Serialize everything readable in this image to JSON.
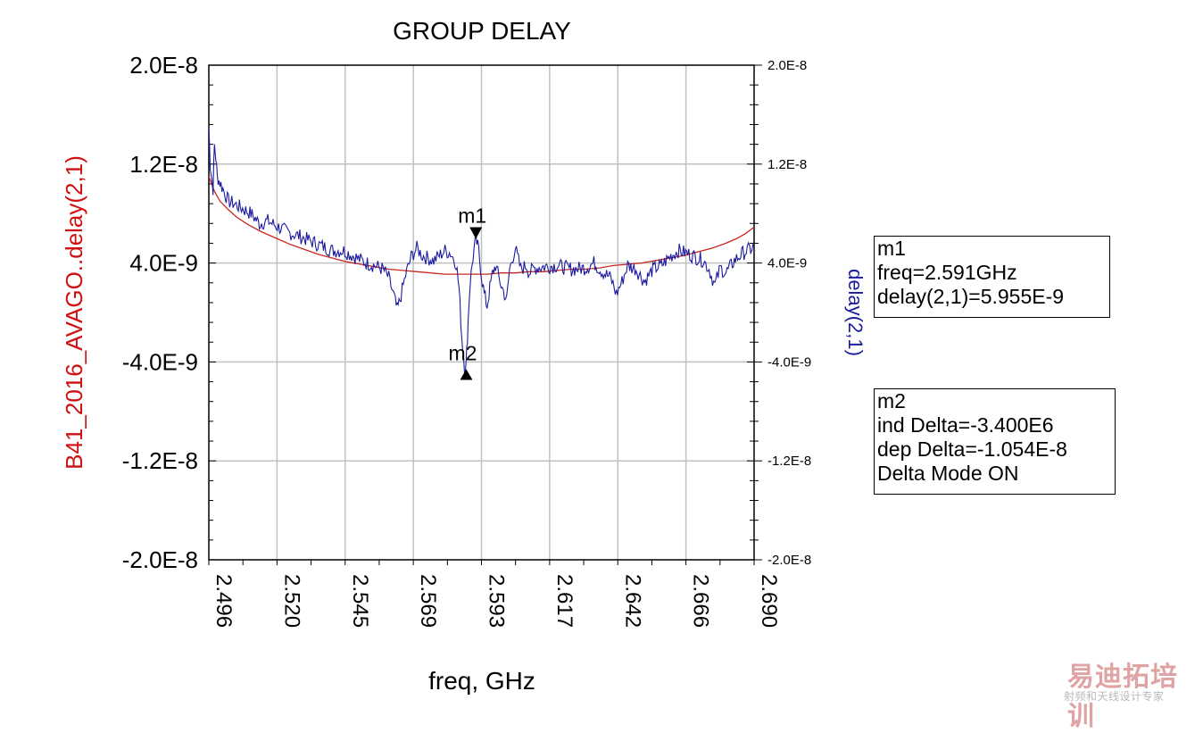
{
  "chart_data": {
    "type": "line",
    "title": "GROUP DELAY",
    "xlabel": "freq, GHz",
    "ylabel_left": "B41_2016_AVAGO..delay(2,1)",
    "ylabel_right": "delay(2,1)",
    "xlim": [
      2.496,
      2.69
    ],
    "ylim": [
      -2e-08,
      2e-08
    ],
    "x_ticks": [
      "2.496",
      "2.520",
      "2.545",
      "2.569",
      "2.593",
      "2.617",
      "2.642",
      "2.666",
      "2.690"
    ],
    "y_ticks_left": [
      "2.0E-8",
      "1.2E-8",
      "4.0E-9",
      "-4.0E-9",
      "-1.2E-8",
      "-2.0E-8"
    ],
    "y_ticks_right": [
      "2.0E-8",
      "1.2E-8",
      "4.0E-9",
      "-4.0E-9",
      "-1.2E-8",
      "-2.0E-8"
    ],
    "grid": true,
    "colors": {
      "series_red": "#c8281e",
      "series_blue": "#1b1ba0",
      "grid": "#c0c0c0",
      "left_axis_label": "#d01010",
      "right_axis_label": "#1b1ba0"
    },
    "series": [
      {
        "name": "B41_2016_AVAGO..delay(2,1)",
        "color": "#c8281e",
        "x": [
          2.496,
          2.498,
          2.5,
          2.503,
          2.506,
          2.51,
          2.515,
          2.52,
          2.525,
          2.53,
          2.535,
          2.54,
          2.545,
          2.55,
          2.555,
          2.56,
          2.565,
          2.57,
          2.575,
          2.58,
          2.585,
          2.59,
          2.595,
          2.6,
          2.605,
          2.61,
          2.615,
          2.62,
          2.625,
          2.63,
          2.635,
          2.64,
          2.645,
          2.65,
          2.655,
          2.66,
          2.665,
          2.67,
          2.675,
          2.68,
          2.684,
          2.687,
          2.69
        ],
        "y": [
          1.1e-08,
          9.8e-09,
          9e-09,
          8.3e-09,
          7.7e-09,
          7.1e-09,
          6.5e-09,
          6e-09,
          5.5e-09,
          5.1e-09,
          4.7e-09,
          4.4e-09,
          4.1e-09,
          3.9e-09,
          3.7e-09,
          3.5e-09,
          3.4e-09,
          3.3e-09,
          3.2e-09,
          3.1e-09,
          3.1e-09,
          3.1e-09,
          3.1e-09,
          3.2e-09,
          3.2e-09,
          3.3e-09,
          3.3e-09,
          3.4e-09,
          3.5e-09,
          3.5e-09,
          3.6e-09,
          3.8e-09,
          3.9e-09,
          4e-09,
          4.2e-09,
          4.4e-09,
          4.6e-09,
          4.9e-09,
          5.2e-09,
          5.6e-09,
          6e-09,
          6.4e-09,
          6.9e-09
        ]
      },
      {
        "name": "delay(2,1)",
        "color": "#1b1ba0",
        "x": [
          2.496,
          2.4965,
          2.497,
          2.4975,
          2.498,
          2.4985,
          2.499,
          2.5,
          2.501,
          2.503,
          2.505,
          2.508,
          2.511,
          2.514,
          2.517,
          2.52,
          2.524,
          2.528,
          2.532,
          2.536,
          2.54,
          2.544,
          2.548,
          2.552,
          2.555,
          2.558,
          2.56,
          2.562,
          2.563,
          2.564,
          2.566,
          2.568,
          2.57,
          2.572,
          2.574,
          2.576,
          2.578,
          2.58,
          2.582,
          2.584,
          2.585,
          2.586,
          2.587,
          2.5875,
          2.588,
          2.5885,
          2.589,
          2.59,
          2.591,
          2.592,
          2.593,
          2.594,
          2.595,
          2.596,
          2.597,
          2.598,
          2.6,
          2.602,
          2.603,
          2.605,
          2.607,
          2.609,
          2.61,
          2.612,
          2.615,
          2.62,
          2.625,
          2.63,
          2.633,
          2.636,
          2.639,
          2.641,
          2.643,
          2.645,
          2.648,
          2.651,
          2.654,
          2.657,
          2.66,
          2.663,
          2.666,
          2.669,
          2.672,
          2.674,
          2.676,
          2.678,
          2.68,
          2.683,
          2.686,
          2.69
        ],
        "y": [
          1.5e-08,
          1.2e-08,
          1.1e-08,
          1e-08,
          1.35e-08,
          1.25e-08,
          1.1e-08,
          1.05e-08,
          1e-08,
          9e-09,
          8.8e-09,
          8.4e-09,
          8e-09,
          7.2e-09,
          7.4e-09,
          7e-09,
          6.5e-09,
          6.2e-09,
          5.8e-09,
          5.4e-09,
          5e-09,
          5e-09,
          4.5e-09,
          4e-09,
          3.8e-09,
          3.5e-09,
          2.8e-09,
          1.2e-09,
          2e-10,
          1e-09,
          3e-09,
          4.5e-09,
          5.2e-09,
          4.6e-09,
          4.4e-09,
          4.2e-09,
          4.6e-09,
          5e-09,
          4.8e-09,
          4e-09,
          2e-09,
          -2e-09,
          -4.5e-09,
          -4.3e-09,
          -2e-09,
          5e-10,
          2.5e-09,
          4.5e-09,
          5.955e-09,
          5e-09,
          3e-09,
          1.5e-09,
          5e-10,
          2e-09,
          3.2e-09,
          3.8e-09,
          2.2e-09,
          1e-09,
          3.5e-09,
          5.2e-09,
          3.5e-09,
          3.8e-09,
          3.2e-09,
          3.6e-09,
          3.7e-09,
          3.8e-09,
          3.5e-09,
          3.6e-09,
          4e-09,
          3.3e-09,
          2.8e-09,
          1.5e-09,
          2.5e-09,
          3.8e-09,
          3.5e-09,
          2.5e-09,
          3.5e-09,
          3.8e-09,
          4.5e-09,
          5e-09,
          4.8e-09,
          4.5e-09,
          4.2e-09,
          3.5e-09,
          2.2e-09,
          3.6e-09,
          3.2e-09,
          4.2e-09,
          4.8e-09,
          5.3e-09
        ]
      }
    ],
    "markers": [
      {
        "name": "m1",
        "x": 2.591,
        "y": 5.955e-09,
        "direction": "down"
      },
      {
        "name": "m2",
        "x": 2.5876,
        "y": -4.585e-09,
        "direction": "up"
      }
    ]
  },
  "marker_readouts": {
    "m1": {
      "title": "m1",
      "lines": [
        "freq=2.591GHz",
        "delay(2,1)=5.955E-9"
      ]
    },
    "m2": {
      "title": "m2",
      "lines": [
        "ind Delta=-3.400E6",
        "dep Delta=-1.054E-8",
        "Delta Mode ON"
      ]
    }
  },
  "watermark": {
    "main": "易迪拓培训",
    "sub": "射频和天线设计专家"
  }
}
